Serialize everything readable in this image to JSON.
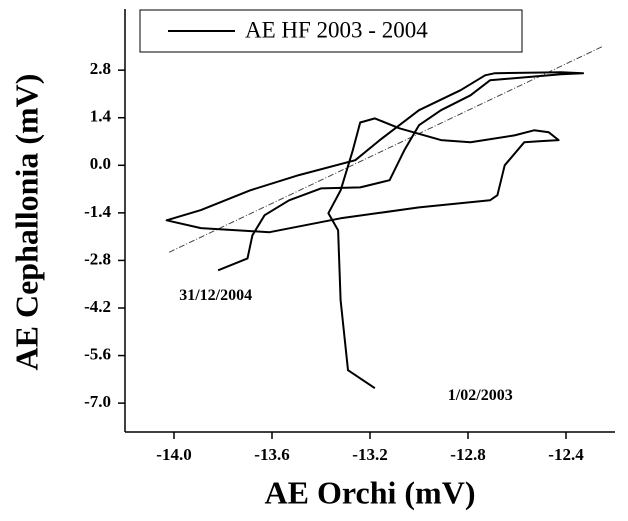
{
  "chart_data": {
    "type": "line",
    "xlabel": "AE Orchi (mV)",
    "ylabel": "AE Cephallonia (mV)",
    "xlim": [
      -14.2,
      -12.2
    ],
    "ylim": [
      -7.85,
      4.6
    ],
    "xticks": [
      {
        "value": -14.0,
        "label": "-14.0"
      },
      -13.6,
      -13.2,
      -12.8,
      -12.4
    ],
    "yticks": [
      2.8,
      1.4,
      {
        "value": 0.0,
        "label": "0.0"
      },
      -1.4,
      -2.8,
      -4.2,
      -5.6,
      {
        "value": -7.0,
        "label": "-7.0"
      }
    ],
    "legend": "top-left",
    "series": [
      {
        "name": "AE HF 2003 - 2004",
        "color": "#000000",
        "x": [
          -13.18,
          -13.29,
          -13.32,
          -13.33,
          -13.37,
          -13.32,
          -13.27,
          -13.24,
          -13.18,
          -13.08,
          -12.91,
          -12.79,
          -12.61,
          -12.53,
          -12.47,
          -12.43,
          -12.51,
          -12.57,
          -12.65,
          -12.68,
          -12.71,
          -13.0,
          -13.32,
          -13.61,
          -13.89,
          -14.03,
          -13.89,
          -13.69,
          -13.49,
          -13.26,
          -13.16,
          -13.0,
          -12.83,
          -12.73,
          -12.69,
          -12.42,
          -12.33,
          -12.42,
          -12.71,
          -12.79,
          -12.91,
          -13.0,
          -13.06,
          -13.12,
          -13.24,
          -13.4,
          -13.53,
          -13.63,
          -13.68,
          -13.7,
          -13.82
        ],
        "values": [
          -6.56,
          -6.03,
          -3.97,
          -1.91,
          -1.41,
          -0.74,
          0.44,
          1.26,
          1.38,
          1.09,
          0.74,
          0.68,
          0.88,
          1.03,
          0.97,
          0.74,
          0.71,
          0.68,
          0,
          -0.88,
          -1.03,
          -1.24,
          -1.56,
          -1.97,
          -1.85,
          -1.62,
          -1.32,
          -0.74,
          -0.29,
          0.15,
          0.74,
          1.62,
          2.21,
          2.65,
          2.71,
          2.74,
          2.71,
          2.68,
          2.5,
          2.06,
          1.62,
          1.18,
          0.44,
          -0.44,
          -0.65,
          -0.68,
          -1.03,
          -1.47,
          -2.06,
          -2.74,
          -3.09
        ]
      }
    ],
    "trend": {
      "color": "#444444",
      "x": [
        -14.02,
        -12.25
      ],
      "values": [
        -2.56,
        3.5
      ]
    },
    "annotations": [
      {
        "text": "31/12/2004",
        "x": -13.83,
        "y": -3.85
      },
      {
        "text": "1/02/2003",
        "x": -12.75,
        "y": -6.8
      }
    ]
  }
}
